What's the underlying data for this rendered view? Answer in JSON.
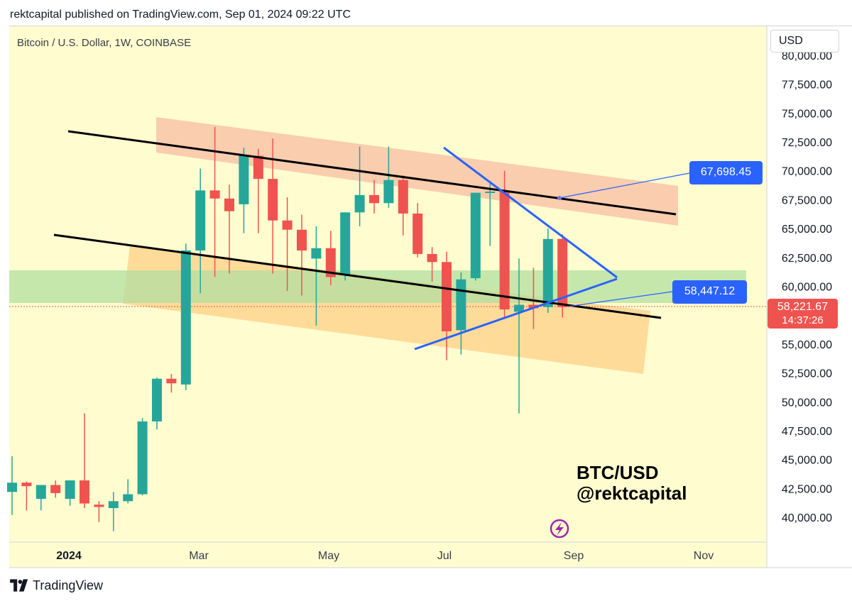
{
  "header": "rektcapital published on TradingView.com, Sep 01, 2024 09:22 UTC",
  "symbol_title": "Bitcoin / U.S. Dollar, 1W, COINBASE",
  "currency": "USD",
  "watermark_lines": [
    "BTC/USD",
    "@rektcapital"
  ],
  "footer_brand": "TradingView",
  "lightning-icon": "lightning-icon",
  "colors": {
    "up": "#26a69a",
    "down": "#ef5350",
    "background": "#fffdd0",
    "channel_lines": "#000000",
    "triangle_lines": "#2962ff",
    "resistance_zone": "#f8c4a8",
    "support_zone": "#ffd591",
    "green_zone": "#b2dfa0"
  },
  "chart_data": {
    "type": "candlestick",
    "title": "Bitcoin / U.S. Dollar, 1W, COINBASE",
    "y_ticks": [
      80000,
      77500,
      75000,
      72500,
      70000,
      67500,
      65000,
      62500,
      60000,
      57500,
      55000,
      52500,
      50000,
      47500,
      45000,
      42500,
      40000
    ],
    "y_tick_labels": [
      "80,000.00",
      "77,500.00",
      "75,000.00",
      "72,500.00",
      "70,000.00",
      "67,500.00",
      "65,000.00",
      "62,500.00",
      "60,000.00",
      "57,500.00",
      "55,000.00",
      "52,500.00",
      "50,000.00",
      "47,500.00",
      "45,000.00",
      "42,500.00",
      "40,000.00"
    ],
    "ylim": [
      38000,
      81000
    ],
    "x_labels": [
      "2024",
      "Mar",
      "May",
      "Jul",
      "Sep",
      "Nov"
    ],
    "candles": [
      {
        "o": 42200,
        "h": 45300,
        "l": 40200,
        "c": 43000
      },
      {
        "o": 43000,
        "h": 43100,
        "l": 40600,
        "c": 42700
      },
      {
        "o": 41600,
        "h": 42500,
        "l": 40600,
        "c": 42800
      },
      {
        "o": 42800,
        "h": 43200,
        "l": 41700,
        "c": 42100
      },
      {
        "o": 41600,
        "h": 43100,
        "l": 41000,
        "c": 43200
      },
      {
        "o": 43200,
        "h": 49000,
        "l": 40800,
        "c": 41200
      },
      {
        "o": 41100,
        "h": 41400,
        "l": 39600,
        "c": 40900
      },
      {
        "o": 40800,
        "h": 42200,
        "l": 38800,
        "c": 41400
      },
      {
        "o": 41400,
        "h": 43300,
        "l": 41200,
        "c": 42000
      },
      {
        "o": 42000,
        "h": 48600,
        "l": 41900,
        "c": 48300
      },
      {
        "o": 48300,
        "h": 52100,
        "l": 47600,
        "c": 52000
      },
      {
        "o": 52000,
        "h": 52400,
        "l": 50800,
        "c": 51600
      },
      {
        "o": 51500,
        "h": 63700,
        "l": 51000,
        "c": 63100
      },
      {
        "o": 63100,
        "h": 70200,
        "l": 59400,
        "c": 68300
      },
      {
        "o": 68300,
        "h": 73800,
        "l": 60800,
        "c": 67600
      },
      {
        "o": 67600,
        "h": 68800,
        "l": 61100,
        "c": 66500
      },
      {
        "o": 67100,
        "h": 72000,
        "l": 64600,
        "c": 71300
      },
      {
        "o": 71300,
        "h": 71900,
        "l": 64600,
        "c": 69300
      },
      {
        "o": 69300,
        "h": 72800,
        "l": 61100,
        "c": 65700
      },
      {
        "o": 65700,
        "h": 67700,
        "l": 59600,
        "c": 64900
      },
      {
        "o": 64900,
        "h": 66200,
        "l": 59200,
        "c": 63100
      },
      {
        "o": 62400,
        "h": 65200,
        "l": 56600,
        "c": 63300
      },
      {
        "o": 63300,
        "h": 64800,
        "l": 60100,
        "c": 60800
      },
      {
        "o": 61000,
        "h": 66400,
        "l": 60500,
        "c": 66400
      },
      {
        "o": 66400,
        "h": 72100,
        "l": 65200,
        "c": 67900
      },
      {
        "o": 67900,
        "h": 69200,
        "l": 66300,
        "c": 67200
      },
      {
        "o": 67200,
        "h": 72100,
        "l": 66800,
        "c": 69200
      },
      {
        "o": 69200,
        "h": 69600,
        "l": 64400,
        "c": 66300
      },
      {
        "o": 66300,
        "h": 67200,
        "l": 62500,
        "c": 62800
      },
      {
        "o": 62800,
        "h": 63400,
        "l": 60400,
        "c": 62100
      },
      {
        "o": 62100,
        "h": 63000,
        "l": 53600,
        "c": 56100
      },
      {
        "o": 56200,
        "h": 61200,
        "l": 54100,
        "c": 60600
      },
      {
        "o": 60700,
        "h": 68100,
        "l": 60500,
        "c": 68100
      },
      {
        "o": 68100,
        "h": 69100,
        "l": 63500,
        "c": 68200
      },
      {
        "o": 68200,
        "h": 70000,
        "l": 57300,
        "c": 58000
      },
      {
        "o": 57800,
        "h": 62400,
        "l": 49000,
        "c": 58400
      },
      {
        "o": 58400,
        "h": 61600,
        "l": 56300,
        "c": 58100
      },
      {
        "o": 58200,
        "h": 65000,
        "l": 57700,
        "c": 64100
      },
      {
        "o": 64100,
        "h": 64500,
        "l": 57300,
        "c": 58200
      }
    ],
    "price_labels": {
      "upper_target": "67,698.45",
      "lower_target": "58,447.12",
      "current_price": "58,221.67",
      "countdown": "14:37:26"
    },
    "current_price_value": 58221.67,
    "grid": false
  }
}
